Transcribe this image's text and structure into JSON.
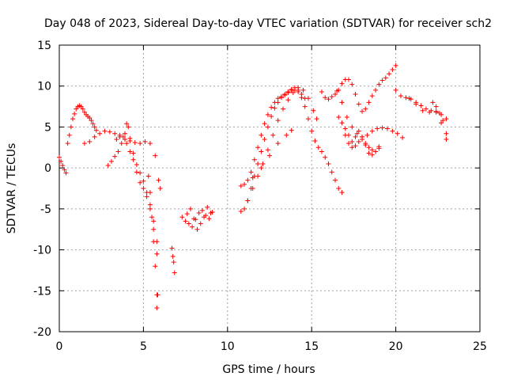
{
  "chart_data": {
    "type": "scatter",
    "title": "Day 048 of 2023, Sidereal Day-to-day VTEC variation (SDTVAR) for receiver sch2",
    "xlabel": "GPS time / hours",
    "ylabel": "SDTVAR / TECUs",
    "xlim": [
      0,
      25
    ],
    "ylim": [
      -20,
      15
    ],
    "xticks": [
      "0",
      "5",
      "10",
      "15",
      "20",
      "25"
    ],
    "yticks": [
      "15",
      "10",
      "5",
      "0",
      "-5",
      "-10",
      "-15",
      "-20"
    ],
    "grid": true,
    "marker": "+",
    "color": "#ff0000",
    "series": [
      {
        "name": "s1",
        "x": [
          0.0,
          0.1,
          0.2,
          0.3,
          0.4
        ],
        "y": [
          1.3,
          0.8,
          0.3,
          -0.2,
          -0.6
        ]
      },
      {
        "name": "s2",
        "x": [
          0.5,
          0.6,
          0.7,
          0.8,
          0.9,
          1.0,
          1.1,
          1.2,
          1.3,
          1.4,
          1.5,
          1.6,
          1.7,
          1.8,
          1.9,
          2.0,
          2.1,
          2.2
        ],
        "y": [
          3.0,
          4.0,
          5.0,
          6.0,
          6.6,
          7.2,
          7.5,
          7.6,
          7.5,
          7.2,
          6.8,
          6.5,
          6.3,
          6.1,
          5.8,
          5.4,
          5.0,
          4.6
        ]
      },
      {
        "name": "s3",
        "x": [
          1.5,
          1.8,
          2.1,
          2.4,
          2.7,
          3.0,
          3.3,
          3.6,
          3.9,
          4.2,
          4.5,
          4.8,
          5.1,
          5.4,
          5.7
        ],
        "y": [
          3.0,
          3.2,
          3.8,
          4.2,
          4.5,
          4.4,
          4.2,
          3.8,
          3.5,
          3.3,
          3.1,
          3.0,
          3.2,
          3.0,
          1.5
        ]
      },
      {
        "name": "s4",
        "x": [
          2.9,
          3.1,
          3.3,
          3.5,
          3.7,
          3.9,
          4.0,
          4.1,
          4.2,
          4.4,
          4.6,
          4.8,
          5.0,
          5.2,
          5.4,
          5.6,
          5.8
        ],
        "y": [
          0.3,
          0.8,
          1.4,
          2.0,
          3.0,
          4.2,
          5.4,
          5.0,
          3.6,
          1.8,
          0.4,
          -0.6,
          -1.6,
          -3.0,
          -4.5,
          -7.5,
          -10.5
        ]
      },
      {
        "name": "s5",
        "x": [
          3.4,
          3.6,
          3.8,
          4.0,
          4.2,
          4.4,
          4.6,
          4.8,
          5.0,
          5.2,
          5.4,
          5.6,
          5.8
        ],
        "y": [
          3.5,
          4.0,
          3.8,
          3.0,
          2.0,
          1.0,
          -0.5,
          -1.8,
          -2.5,
          -3.5,
          -5.0,
          -6.5,
          -9.0
        ]
      },
      {
        "name": "s6",
        "x": [
          5.3,
          5.4,
          5.5,
          5.6,
          5.7,
          5.8
        ],
        "y": [
          -1.0,
          -3.0,
          -6.0,
          -9.0,
          -12.0,
          -15.5
        ]
      },
      {
        "name": "s7",
        "x": [
          5.8,
          5.85,
          5.9,
          6.0
        ],
        "y": [
          -17.1,
          -15.5,
          -1.5,
          -2.5
        ]
      },
      {
        "name": "s8",
        "x": [
          6.7,
          6.75,
          6.8,
          6.85
        ],
        "y": [
          -9.8,
          -10.8,
          -11.5,
          -12.8
        ]
      },
      {
        "name": "s9",
        "x": [
          7.3,
          7.5,
          7.7,
          7.9,
          8.1,
          8.3,
          8.5,
          8.7,
          8.9,
          9.1
        ],
        "y": [
          -6.0,
          -6.5,
          -6.8,
          -7.2,
          -6.3,
          -5.5,
          -5.2,
          -5.8,
          -6.2,
          -5.4
        ]
      },
      {
        "name": "s10",
        "x": [
          7.6,
          7.8,
          8.0,
          8.2,
          8.4,
          8.6,
          8.8,
          9.0
        ],
        "y": [
          -5.6,
          -5.0,
          -6.2,
          -7.5,
          -6.8,
          -6.0,
          -4.8,
          -5.5
        ]
      },
      {
        "name": "s11",
        "x": [
          10.8,
          11.0,
          11.2,
          11.4,
          11.6,
          11.8,
          12.0,
          12.2,
          12.4,
          12.6,
          12.8,
          13.0,
          13.2,
          13.4,
          13.6,
          13.8,
          14.0,
          14.2,
          14.4,
          14.6,
          14.8,
          15.0,
          15.2,
          15.4,
          15.6,
          15.8,
          16.0,
          16.2,
          16.4,
          16.6,
          16.8
        ],
        "y": [
          -5.3,
          -5.0,
          -4.0,
          -2.5,
          -1.0,
          0.5,
          2.0,
          3.5,
          5.0,
          6.3,
          7.3,
          8.0,
          8.6,
          9.0,
          9.3,
          9.5,
          9.5,
          9.3,
          8.6,
          7.5,
          6.0,
          4.5,
          3.3,
          2.5,
          2.0,
          1.3,
          0.5,
          -0.5,
          -1.5,
          -2.5,
          -3.0
        ]
      },
      {
        "name": "s12",
        "x": [
          10.8,
          11.0,
          11.2,
          11.4,
          11.6,
          11.8,
          12.0,
          12.2,
          12.4,
          12.6,
          12.8,
          13.0,
          13.2,
          13.4,
          13.6,
          13.8,
          14.0,
          14.2,
          14.4,
          14.6
        ],
        "y": [
          -2.2,
          -2.0,
          -1.5,
          -0.5,
          1.0,
          2.5,
          4.0,
          5.4,
          6.5,
          7.4,
          8.0,
          8.5,
          8.7,
          8.9,
          9.2,
          9.6,
          9.8,
          9.5,
          9.0,
          8.5
        ]
      },
      {
        "name": "s13",
        "x": [
          11.2,
          11.5,
          11.8,
          12.1,
          12.4,
          12.7,
          13.0,
          13.3,
          13.6,
          13.9,
          14.2,
          14.5,
          14.8,
          15.1,
          15.3
        ],
        "y": [
          -4.0,
          -2.5,
          -1.0,
          0.5,
          2.2,
          4.0,
          5.8,
          7.2,
          8.3,
          9.2,
          9.8,
          9.5,
          8.5,
          7.0,
          6.0
        ]
      },
      {
        "name": "s14",
        "x": [
          11.5,
          12.0,
          12.5,
          13.0,
          13.5,
          13.8
        ],
        "y": [
          -1.2,
          0.0,
          1.5,
          3.0,
          4.0,
          4.6
        ]
      },
      {
        "name": "s15",
        "x": [
          15.6,
          15.8,
          16.0,
          16.2,
          16.4,
          16.6,
          16.8,
          17.0,
          17.2,
          17.4,
          17.6,
          17.8,
          18.0,
          18.2,
          18.4,
          18.6,
          18.8,
          19.0,
          19.2,
          19.4,
          19.6,
          19.8,
          20.0
        ],
        "y": [
          9.3,
          8.6,
          8.4,
          8.7,
          9.0,
          9.5,
          10.3,
          10.8,
          10.8,
          10.2,
          9.0,
          7.8,
          6.9,
          7.2,
          8.0,
          8.8,
          9.5,
          10.2,
          10.7,
          11.0,
          11.5,
          12.0,
          12.5
        ]
      },
      {
        "name": "s16",
        "x": [
          16.5,
          16.8,
          17.1,
          17.4,
          17.7,
          18.0,
          18.3,
          18.6,
          18.9,
          19.2,
          19.5,
          19.8,
          20.1,
          20.4
        ],
        "y": [
          9.4,
          8.0,
          6.2,
          5.0,
          4.2,
          3.8,
          4.0,
          4.5,
          4.8,
          4.9,
          4.8,
          4.5,
          4.2,
          3.7
        ]
      },
      {
        "name": "s17",
        "x": [
          16.6,
          16.8,
          17.0,
          17.2,
          17.4,
          17.6,
          17.8,
          18.0,
          18.2,
          18.4,
          18.6,
          18.8,
          19.0
        ],
        "y": [
          6.2,
          5.5,
          4.8,
          4.0,
          3.2,
          3.8,
          4.5,
          3.8,
          2.8,
          1.8,
          1.6,
          2.0,
          2.6
        ]
      },
      {
        "name": "s18",
        "x": [
          17.0,
          17.2,
          17.4,
          17.6,
          17.8,
          18.0,
          18.2,
          18.4,
          18.6,
          18.8,
          19.0
        ],
        "y": [
          4.0,
          3.0,
          2.5,
          2.7,
          3.2,
          3.5,
          3.0,
          2.5,
          2.2,
          2.0,
          2.4
        ]
      },
      {
        "name": "s19",
        "x": [
          20.0,
          20.3,
          20.6,
          20.9,
          21.2,
          21.5,
          21.8,
          22.1,
          22.4,
          22.7,
          23.0
        ],
        "y": [
          9.5,
          8.8,
          8.6,
          8.4,
          8.0,
          7.6,
          7.2,
          7.0,
          6.8,
          6.5,
          6.0
        ]
      },
      {
        "name": "s20",
        "x": [
          20.8,
          21.2,
          21.6,
          22.0,
          22.4,
          22.7,
          23.0
        ],
        "y": [
          8.5,
          7.8,
          7.0,
          6.8,
          6.9,
          5.5,
          3.5
        ]
      },
      {
        "name": "s21",
        "x": [
          22.2,
          22.4,
          22.6,
          22.8,
          23.0
        ],
        "y": [
          8.0,
          7.5,
          6.7,
          5.8,
          4.2
        ]
      }
    ]
  }
}
